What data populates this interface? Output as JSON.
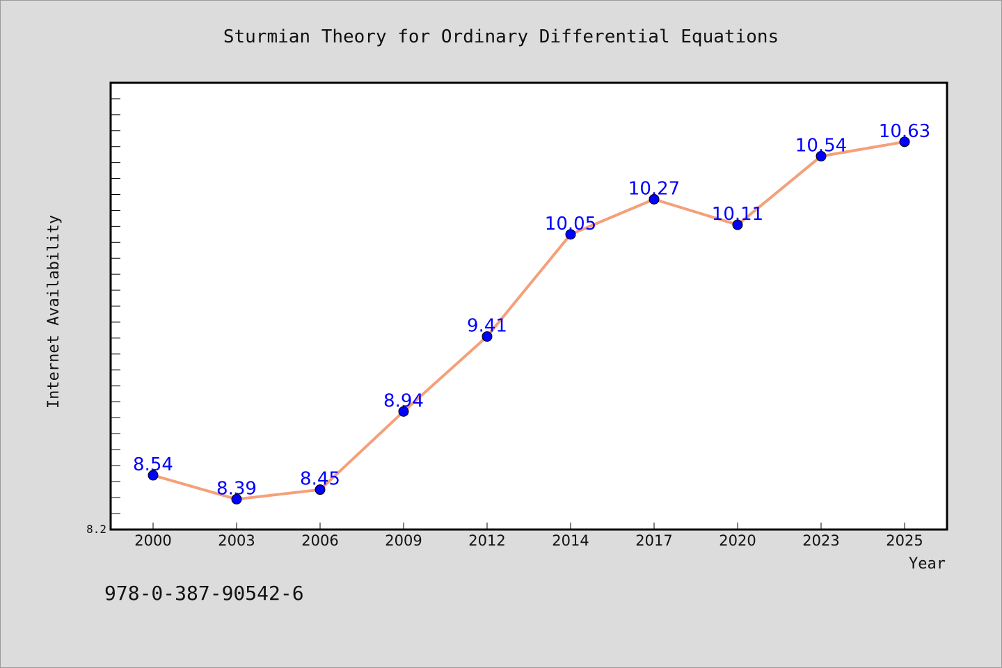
{
  "chart_data": {
    "type": "line",
    "title": "Sturmian Theory for Ordinary Differential Equations",
    "xlabel": "Year",
    "ylabel": "Internet Availability",
    "categories": [
      "2000",
      "2003",
      "2006",
      "2009",
      "2012",
      "2014",
      "2017",
      "2020",
      "2023",
      "2025"
    ],
    "series": [
      {
        "values": [
          8.54,
          8.39,
          8.45,
          8.94,
          9.41,
          10.05,
          10.27,
          10.11,
          10.54,
          10.63
        ],
        "labels": [
          "8.54",
          "8.39",
          "8.45",
          "8.94",
          "9.41",
          "10.05",
          "10.27",
          "10.11",
          "10.54",
          "10.63"
        ],
        "line_color": "#f4a07a",
        "marker_color": "#0000ff",
        "label_color": "#0000ff"
      }
    ],
    "ylim": [
      8.2,
      11.0
    ],
    "ymin_label": "8.2",
    "grid": false
  },
  "footer_text": "978-0-387-90542-6",
  "colors": {
    "background": "#dcdcdc",
    "plot_background": "#ffffff"
  }
}
